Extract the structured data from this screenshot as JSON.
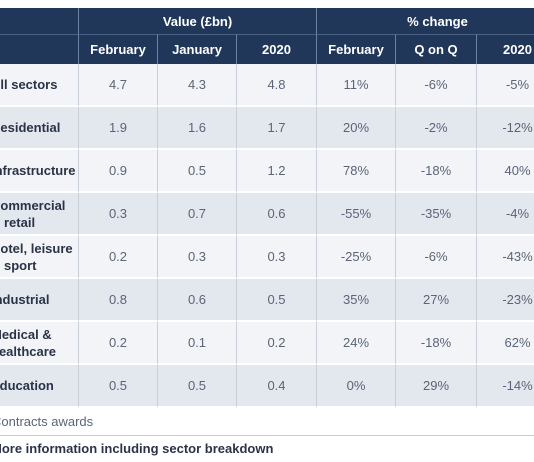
{
  "table": {
    "groups": {
      "value": "Value (£bn)",
      "change": "% change"
    },
    "columns": [
      "February",
      "January",
      "2020",
      "February",
      "Q on Q",
      "2020"
    ],
    "rows": [
      {
        "label_lines": [
          "All sectors"
        ],
        "values": [
          "4.7",
          "4.3",
          "4.8",
          "11%",
          "-6%",
          "-5%"
        ]
      },
      {
        "label_lines": [
          "Residential"
        ],
        "values": [
          "1.9",
          "1.6",
          "1.7",
          "20%",
          "-2%",
          "-12%"
        ]
      },
      {
        "label_lines": [
          "Infrastructure"
        ],
        "values": [
          "0.9",
          "0.5",
          "1.2",
          "78%",
          "-18%",
          "40%"
        ]
      },
      {
        "label_lines": [
          "Commercial",
          "& retail"
        ],
        "values": [
          "0.3",
          "0.7",
          "0.6",
          "-55%",
          "-35%",
          "-4%"
        ]
      },
      {
        "label_lines": [
          "Hotel, leisure",
          "& sport"
        ],
        "values": [
          "0.2",
          "0.3",
          "0.3",
          "-25%",
          "-6%",
          "-43%"
        ]
      },
      {
        "label_lines": [
          "Industrial"
        ],
        "values": [
          "0.8",
          "0.6",
          "0.5",
          "35%",
          "27%",
          "-23%"
        ]
      },
      {
        "label_lines": [
          "Medical &",
          "healthcare"
        ],
        "values": [
          "0.2",
          "0.1",
          "0.2",
          "24%",
          "-18%",
          "62%"
        ]
      },
      {
        "label_lines": [
          "Education"
        ],
        "values": [
          "0.5",
          "0.5",
          "0.4",
          "0%",
          "29%",
          "-14%"
        ]
      }
    ]
  },
  "footer": {
    "note": "Contracts awards",
    "link": "More information including sector breakdown"
  }
}
